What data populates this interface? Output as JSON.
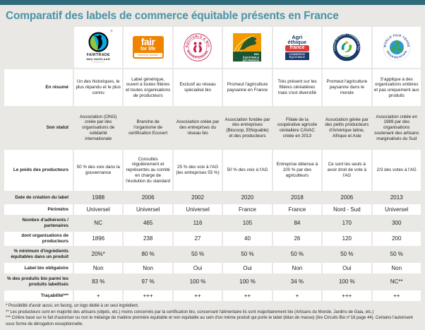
{
  "title": "Comparatif des labels de commerce équitable présents en France",
  "colors": {
    "top_bar": "#2f6b7b",
    "title": "#4b94a7",
    "page_background": "#e9e8e5",
    "cell_background": "#ffffff",
    "fairtrade_blue": "#00ade9",
    "fairtrade_green": "#8dc63f",
    "fair_for_life_orange": "#f08300",
    "biopartenaire_red": "#c2204c",
    "bio_equitable_orange": "#f29a00",
    "bio_equitable_green": "#1a5632",
    "agri_ethique_navy": "#1d3a6e",
    "agri_ethique_red": "#e23a35",
    "spp_navy": "#173a66",
    "wfto_navy": "#1f3d8c"
  },
  "columns": [
    {
      "name": "Fairtrade Max Havelaar France",
      "wordmark": "FAIRTRADE",
      "submark": "MAX HAVELAAR",
      "country": "FRANCE",
      "registered": "®"
    },
    {
      "name": "Fair for Life",
      "word1": "fair",
      "word2": "for life",
      "strip": "commerce équitable"
    },
    {
      "name": "Biopartenaire",
      "arc_top": "ÉQUITABLE & BIO",
      "arc_bottom": "BIOPARTENAIRE"
    },
    {
      "name": "Bio Équitable en France",
      "line1": "BIO",
      "line2": "ÉQUITABLE",
      "line3": "EN FRANCE"
    },
    {
      "name": "Agri Éthique France",
      "word1": "Agri",
      "word2": "éthique",
      "word3": "france",
      "banner": "COMMERCE ÉQUITABLE"
    },
    {
      "name": "SPP Producteurs Paysans",
      "arc_top": "PRODUCTEURS PAYSANS • COMMERCE ÉQUITABLE",
      "bottom": "• SPP •"
    },
    {
      "name": "World Fair Trade Organization",
      "arc_top": "WORLD FAIR TRADE",
      "arc_bottom": "ORGANIZATION"
    }
  ],
  "rows": [
    {
      "label": "En résumé",
      "values": [
        "Un des historiques, le plus répandu et le plus connu",
        "Label générique, ouvert à toutes filières et toutes organisations de producteurs",
        "Exclusif au réseau spécialisé bio",
        "Promeut l'agriculture paysanne en France",
        "Très présent sur les filières céréalières mais s'est diversifié",
        "Promeut l'agriculture paysanne dans le monde",
        "S'applique à des organisations entières et pas uniquement aux produits"
      ]
    },
    {
      "label": "Son statut",
      "values": [
        "Association (ONG) créée par des organisations de solidarité internationale",
        "Branche de l'organisme de certification Ecocert",
        "Association créée par des entreprises du réseau bio",
        "Association fondée par des entreprises (Biocoop, Ethiquable) et des producteurs",
        "Filiale de la coopérative agricole céréalière CAVAC créée en 2013",
        "Association gérée par des petits producteurs d'Amérique latine, Afrique et Asie",
        "Association créée en 1989 par des organisations soutenant des artisans marginalisés du Sud"
      ]
    },
    {
      "label": "Le poids des producteurs",
      "values": [
        "50 % des voix dans la gouvernance",
        "Consultés régulièrement et représentés au comité en charge de l'évolution du standard",
        "25 % des voix à l'AG (les entreprises 55 %)",
        "50 % des voix à l'AG",
        "Entreprise détenue à 100 % par des agriculteurs",
        "Ce sont les seuls à avoir droit de vote à l'AG",
        "2/3 des votes à l'AG"
      ]
    },
    {
      "label": "Date de création du label",
      "values": [
        "1988",
        "2006",
        "2002",
        "2020",
        "2018",
        "2006",
        "2013"
      ]
    },
    {
      "label": "Périmètre",
      "values": [
        "Universel",
        "Universel",
        "Universel",
        "France",
        "France",
        "Nord - Sud",
        "Universel"
      ]
    },
    {
      "label": "Nombre d'adhérents / partenaires",
      "values": [
        "NC",
        "465",
        "116",
        "105",
        "84",
        "170",
        "300"
      ]
    },
    {
      "label": "dont organisations de producteurs",
      "values": [
        "1896",
        "238",
        "27",
        "40",
        "26",
        "120",
        "200"
      ]
    },
    {
      "label": "% minimum d'ingrédients équitables dans un produit",
      "values": [
        "20%*",
        "80 %",
        "50 %",
        "50 %",
        "50 %",
        "50 %",
        "50 %"
      ]
    },
    {
      "label": "Label bio obligatoire",
      "values": [
        "Non",
        "Non",
        "Oui",
        "Oui",
        "Non",
        "Oui",
        "Non"
      ]
    },
    {
      "label": "% des produits bio parmi les produits labellisés",
      "values": [
        "83 %",
        "97 %",
        "100 %",
        "100 %",
        "34 %",
        "100 %",
        "NC**"
      ]
    },
    {
      "label": "Traçabilité***",
      "values": [
        "+",
        "+++",
        "++",
        "++",
        "+",
        "+++",
        "++"
      ]
    }
  ],
  "footnotes": [
    "* Possibilité d'avoir aussi, en facing, un logo dédié à un seul ingrédient.",
    "** Les producteurs sont en majorité des artisans (objets, etc.) moins concernés par la certification bio, concernant l'alimentaire ils sont majoritairement bio (Artisans du Monde, Jardins de Gaia, etc.)",
    "*** Critère basé sur le fait d'autoriser ou non le mélange de matière première équitable et non équitable au sein d'un même produit qui porte le label (bilan de masse) (lire Circuits Bio n°18 page 44). Certains l'autorisent sous forme de dérogation exceptionnelle."
  ]
}
